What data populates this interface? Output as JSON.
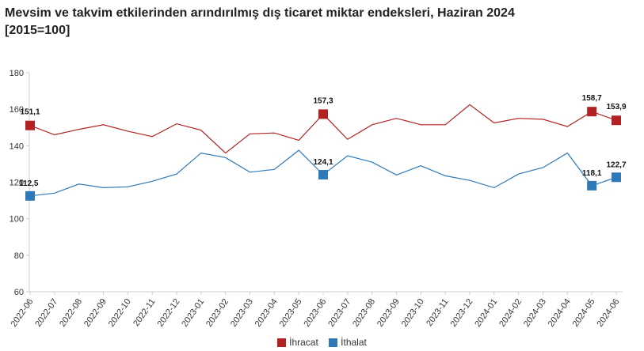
{
  "chart_data": {
    "type": "line",
    "title": "Mevsim ve takvim etkilerinden arındırılmış dış ticaret miktar endeksleri, Haziran 2024",
    "subtitle": "[2015=100]",
    "xlabel": "",
    "ylabel": "",
    "ylim": [
      60,
      180
    ],
    "yticks": [
      60,
      80,
      100,
      120,
      140,
      160,
      180
    ],
    "grid": false,
    "legend_position": "bottom-center",
    "categories": [
      "2022-06",
      "2022-07",
      "2022-08",
      "2022-09",
      "2022-10",
      "2022-11",
      "2022-12",
      "2023-01",
      "2023-02",
      "2023-03",
      "2023-04",
      "2023-05",
      "2023-06",
      "2023-07",
      "2023-08",
      "2023-09",
      "2023-10",
      "2023-11",
      "2023-12",
      "2024-01",
      "2024-02",
      "2024-03",
      "2024-04",
      "2024-05",
      "2024-06"
    ],
    "series": [
      {
        "name": "İhracat",
        "color": "#b22222",
        "values": [
          151.1,
          146,
          149,
          151.5,
          148,
          145,
          152,
          148.5,
          136,
          146.5,
          147,
          143,
          157.3,
          143.5,
          151.5,
          155,
          151.5,
          151.5,
          162.5,
          152.5,
          155,
          154.5,
          150.5,
          158.7,
          153.9
        ],
        "labels": [
          {
            "index": 0,
            "text": "151,1"
          },
          {
            "index": 12,
            "text": "157,3"
          },
          {
            "index": 23,
            "text": "158,7"
          },
          {
            "index": 24,
            "text": "153,9"
          }
        ]
      },
      {
        "name": "İthalat",
        "color": "#2e7ab8",
        "values": [
          112.5,
          114,
          119,
          117,
          117.5,
          120.5,
          124.5,
          136,
          133.5,
          125.5,
          127,
          137.5,
          124.1,
          134.5,
          131,
          124,
          129,
          123.5,
          121,
          117,
          124.5,
          128,
          136,
          118.1,
          122.7
        ],
        "labels": [
          {
            "index": 0,
            "text": "112,5"
          },
          {
            "index": 12,
            "text": "124,1"
          },
          {
            "index": 23,
            "text": "118,1"
          },
          {
            "index": 24,
            "text": "122,7"
          }
        ]
      }
    ]
  }
}
